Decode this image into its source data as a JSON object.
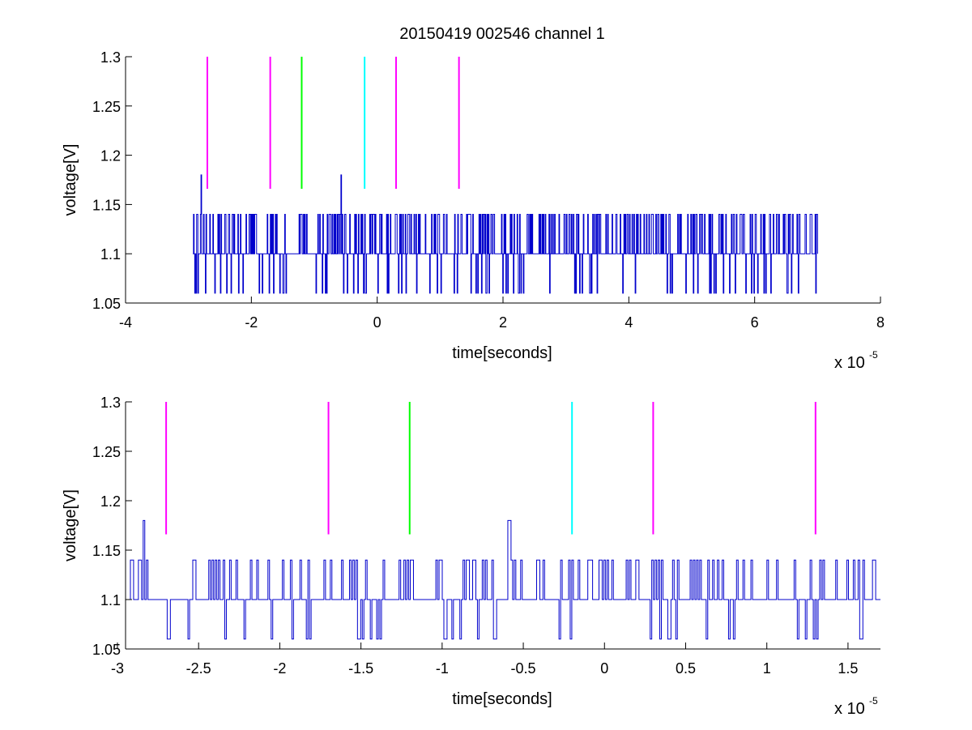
{
  "figure": {
    "title": "20150419 002546 channel 1"
  },
  "chart_data": [
    {
      "type": "line",
      "title": "20150419 002546 channel 1",
      "xlabel": "time[seconds]",
      "ylabel": "voltage[V]",
      "x_multiplier": "x 10",
      "x_exponent": "-5",
      "xlim": [
        -4,
        8
      ],
      "ylim": [
        1.05,
        1.3
      ],
      "xticks": [
        "-4",
        "-2",
        "0",
        "2",
        "4",
        "6",
        "8"
      ],
      "xtick_values": [
        -4,
        -2,
        0,
        2,
        4,
        6,
        8
      ],
      "yticks": [
        "1.05",
        "1.1",
        "1.15",
        "1.2",
        "1.25",
        "1.3"
      ],
      "ytick_values": [
        1.05,
        1.1,
        1.15,
        1.2,
        1.25,
        1.3
      ],
      "grid": false,
      "series": [
        {
          "color": "#0000cc",
          "x_range": [
            -2.93,
            7.0
          ],
          "baseline": 1.1,
          "levels": [
            1.06,
            1.1,
            1.14,
            1.18
          ],
          "peaks": [
            [
              -2.8,
              1.18
            ],
            [
              -0.58,
              1.18
            ]
          ]
        }
      ],
      "markers": [
        {
          "x": -2.7,
          "y": [
            1.166,
            1.3
          ],
          "color": "#ff00ff"
        },
        {
          "x": -1.7,
          "y": [
            1.166,
            1.3
          ],
          "color": "#ff00ff"
        },
        {
          "x": -1.2,
          "y": [
            1.166,
            1.3
          ],
          "color": "#00ff00"
        },
        {
          "x": -0.2,
          "y": [
            1.166,
            1.3
          ],
          "color": "#00ffff"
        },
        {
          "x": 0.3,
          "y": [
            1.166,
            1.3
          ],
          "color": "#ff00ff"
        },
        {
          "x": 1.3,
          "y": [
            1.166,
            1.3
          ],
          "color": "#ff00ff"
        }
      ]
    },
    {
      "type": "line",
      "title": "",
      "xlabel": "time[seconds]",
      "ylabel": "voltage[V]",
      "x_multiplier": "x 10",
      "x_exponent": "-5",
      "xlim": [
        -2.95,
        1.7
      ],
      "ylim": [
        1.05,
        1.3
      ],
      "xticks": [
        "-3",
        "-2.5",
        "-2",
        "-1.5",
        "-1",
        "-0.5",
        "0",
        "0.5",
        "1",
        "1.5"
      ],
      "xtick_values": [
        -3,
        -2.5,
        -2,
        -1.5,
        -1,
        -0.5,
        0,
        0.5,
        1,
        1.5
      ],
      "yticks": [
        "1.05",
        "1.1",
        "1.15",
        "1.2",
        "1.25",
        "1.3"
      ],
      "ytick_values": [
        1.05,
        1.1,
        1.15,
        1.2,
        1.25,
        1.3
      ],
      "grid": false,
      "series": [
        {
          "color": "#0000cc",
          "x_range": [
            -2.93,
            1.7
          ],
          "baseline": 1.1,
          "levels": [
            1.06,
            1.1,
            1.14,
            1.18
          ],
          "peaks": [
            [
              -2.84,
              1.18
            ],
            [
              -0.59,
              1.18
            ]
          ]
        }
      ],
      "markers": [
        {
          "x": -2.7,
          "y": [
            1.166,
            1.3
          ],
          "color": "#ff00ff"
        },
        {
          "x": -1.7,
          "y": [
            1.166,
            1.3
          ],
          "color": "#ff00ff"
        },
        {
          "x": -1.2,
          "y": [
            1.166,
            1.3
          ],
          "color": "#00ff00"
        },
        {
          "x": -0.2,
          "y": [
            1.166,
            1.3
          ],
          "color": "#00ffff"
        },
        {
          "x": 0.3,
          "y": [
            1.166,
            1.3
          ],
          "color": "#ff00ff"
        },
        {
          "x": 1.3,
          "y": [
            1.166,
            1.3
          ],
          "color": "#ff00ff"
        }
      ]
    }
  ]
}
